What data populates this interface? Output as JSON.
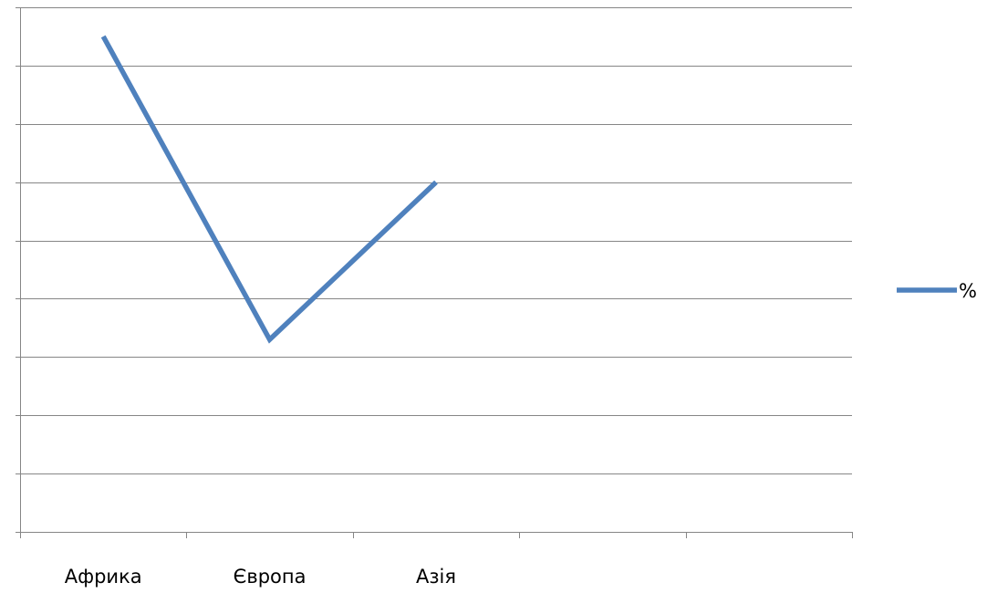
{
  "chart_data": {
    "type": "line",
    "categories": [
      "Африка",
      "Європа",
      "Азія",
      "",
      ""
    ],
    "series": [
      {
        "name": "%",
        "values": [
          8.5,
          3.3,
          6.0,
          null,
          null
        ],
        "color": "#4F81BD"
      }
    ],
    "title": "",
    "xlabel": "",
    "ylabel": "",
    "ylim": [
      0,
      9
    ],
    "y_tick_labels_visible": false,
    "grid": true,
    "legend_position": "right"
  }
}
